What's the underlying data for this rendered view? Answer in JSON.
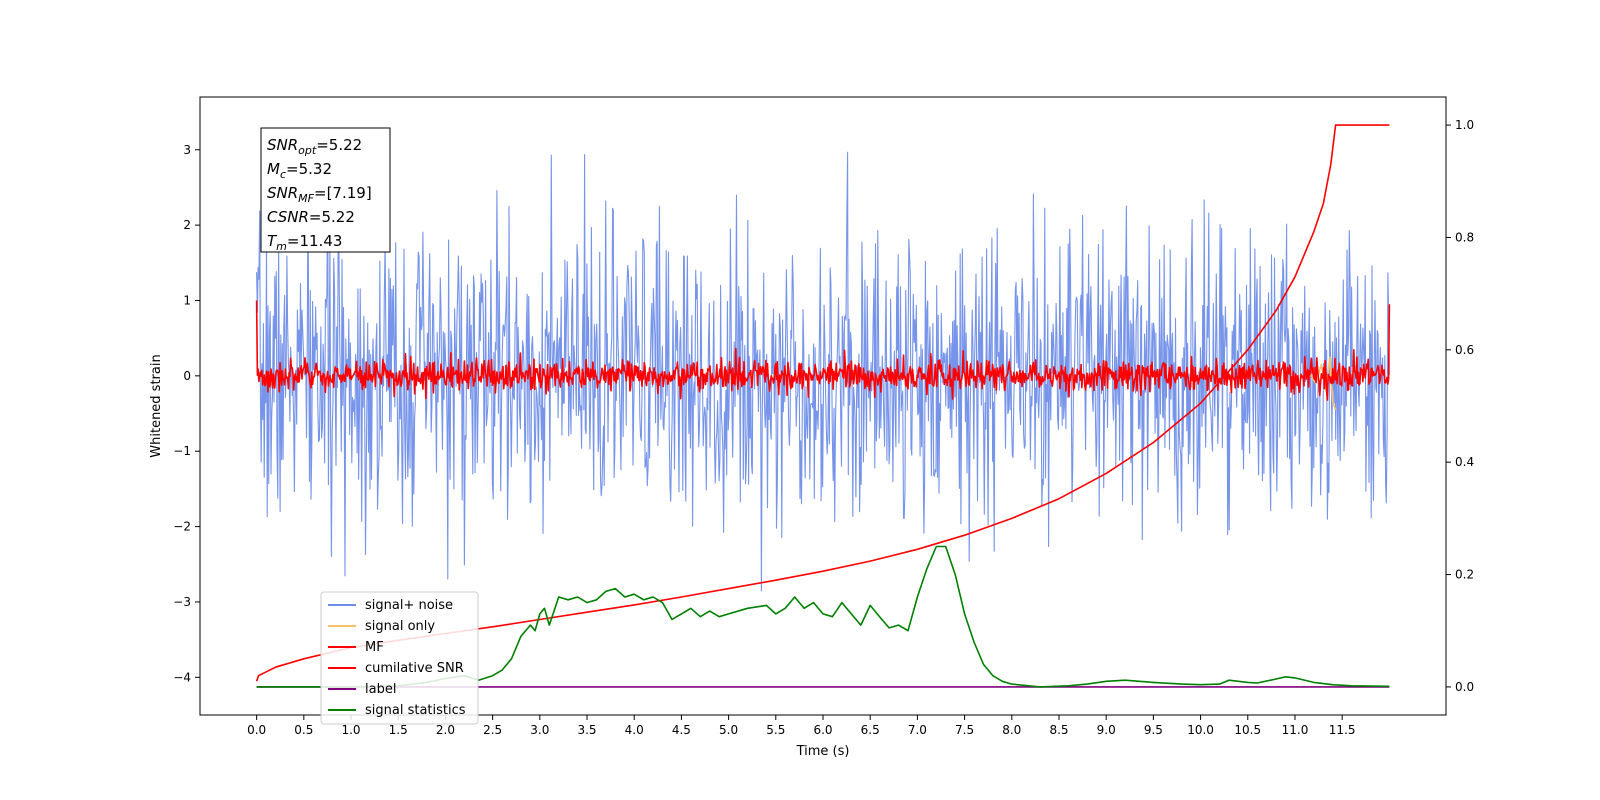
{
  "chart_data": {
    "type": "line",
    "xlabel": "Time (s)",
    "ylabel": "Whitened strain",
    "xlim": [
      -0.6,
      12.6
    ],
    "ylim": [
      -4.5,
      3.7
    ],
    "y2lim": [
      -0.05,
      1.05
    ],
    "x_ticks": [
      0.0,
      0.5,
      1.0,
      1.5,
      2.0,
      2.5,
      3.0,
      3.5,
      4.0,
      4.5,
      5.0,
      5.5,
      6.0,
      6.5,
      7.0,
      7.5,
      8.0,
      8.5,
      9.0,
      9.5,
      10.0,
      10.5,
      11.0,
      11.5
    ],
    "x_tick_labels": [
      "0.0",
      "0.5",
      "1.0",
      "1.5",
      "2.0",
      "2.5",
      "3.0",
      "3.5",
      "4.0",
      "4.5",
      "5.0",
      "5.5",
      "6.0",
      "6.5",
      "7.0",
      "7.5",
      "8.0",
      "8.5",
      "9.0",
      "9.5",
      "10.0",
      "10.5",
      "11.0",
      "11.5"
    ],
    "y_ticks": [
      -4,
      -3,
      -2,
      -1,
      0,
      1,
      2,
      3
    ],
    "y_tick_labels": [
      "−4",
      "−3",
      "−2",
      "−1",
      "0",
      "1",
      "2",
      "3"
    ],
    "y2_ticks": [
      0.0,
      0.2,
      0.4,
      0.6,
      0.8,
      1.0
    ],
    "y2_tick_labels": [
      "0.0",
      "0.2",
      "0.4",
      "0.6",
      "0.8",
      "1.0"
    ],
    "annotation": {
      "lines": [
        {
          "sym": "SNR",
          "sub": "opt",
          "value": "=5.22"
        },
        {
          "sym": "M",
          "sub": "c",
          "value": "=5.32"
        },
        {
          "sym": "SNR",
          "sub": "MF",
          "value": "=[7.19]"
        },
        {
          "sym": "CSNR",
          "sub": "",
          "value": "=5.22"
        },
        {
          "sym": "T",
          "sub": "m",
          "value": "=11.43"
        }
      ]
    },
    "legend": {
      "placement": "lower-left",
      "entries": [
        {
          "label": "signal+ noise",
          "color": "#6f8ee8"
        },
        {
          "label": "signal only",
          "color": "#f5c26b"
        },
        {
          "label": "MF",
          "color": "#ff0000"
        },
        {
          "label": "cumilative SNR",
          "color": "#ff0000"
        },
        {
          "label": "label",
          "color": "#800080"
        },
        {
          "label": "signal statistics",
          "color": "#008000"
        }
      ]
    },
    "series": [
      {
        "name": "signal+ noise",
        "axis": "left",
        "color": "#6f8ee8",
        "x_range": [
          0,
          12.0
        ],
        "amplitude_std": 0.95,
        "n_points": 1500,
        "seed": 7
      },
      {
        "name": "signal only",
        "axis": "left",
        "color": "#f5c26b",
        "x": [
          11.15,
          11.22,
          11.28,
          11.33,
          11.37,
          11.4,
          11.43
        ],
        "y": [
          0.05,
          -0.1,
          0.15,
          -0.2,
          0.25,
          -0.35,
          -0.45
        ]
      },
      {
        "name": "MF",
        "axis": "left",
        "color": "#ff0000",
        "x_range": [
          0,
          12.0
        ],
        "amplitude_std": 0.1,
        "n_points": 1500,
        "seed": 3,
        "start_value": 1.0,
        "end_value": 0.95
      },
      {
        "name": "cumilative SNR",
        "axis": "right",
        "color": "#ff0000",
        "x": [
          0.0,
          0.02,
          0.2,
          0.5,
          1.0,
          1.5,
          2.0,
          2.5,
          3.0,
          3.5,
          4.0,
          4.5,
          5.0,
          5.5,
          6.0,
          6.5,
          7.0,
          7.5,
          8.0,
          8.5,
          9.0,
          9.5,
          10.0,
          10.5,
          10.8,
          11.0,
          11.2,
          11.3,
          11.38,
          11.43,
          12.0
        ],
        "y": [
          0.01,
          0.02,
          0.035,
          0.05,
          0.07,
          0.083,
          0.095,
          0.107,
          0.12,
          0.133,
          0.146,
          0.16,
          0.175,
          0.19,
          0.206,
          0.224,
          0.245,
          0.27,
          0.3,
          0.335,
          0.38,
          0.435,
          0.505,
          0.6,
          0.67,
          0.73,
          0.81,
          0.86,
          0.93,
          1.0,
          1.0
        ]
      },
      {
        "name": "label",
        "axis": "right",
        "color": "#800080",
        "x": [
          0.0,
          12.0
        ],
        "y": [
          0.0,
          0.0
        ]
      },
      {
        "name": "signal statistics",
        "axis": "right",
        "color": "#008000",
        "x": [
          0.0,
          0.5,
          1.0,
          1.5,
          1.8,
          2.0,
          2.2,
          2.35,
          2.5,
          2.6,
          2.7,
          2.8,
          2.9,
          2.95,
          3.0,
          3.05,
          3.1,
          3.2,
          3.3,
          3.4,
          3.5,
          3.6,
          3.7,
          3.8,
          3.9,
          4.0,
          4.1,
          4.2,
          4.3,
          4.4,
          4.5,
          4.6,
          4.7,
          4.8,
          4.9,
          5.0,
          5.2,
          5.4,
          5.5,
          5.6,
          5.7,
          5.8,
          5.9,
          6.0,
          6.1,
          6.2,
          6.3,
          6.4,
          6.5,
          6.6,
          6.7,
          6.8,
          6.9,
          7.0,
          7.1,
          7.2,
          7.3,
          7.4,
          7.5,
          7.6,
          7.7,
          7.8,
          7.9,
          8.0,
          8.3,
          8.6,
          8.8,
          9.0,
          9.2,
          9.5,
          9.8,
          10.0,
          10.2,
          10.3,
          10.5,
          10.6,
          10.8,
          10.9,
          11.0,
          11.2,
          11.4,
          11.6,
          12.0
        ],
        "y": [
          0.0,
          0.0,
          0.0,
          0.002,
          0.008,
          0.015,
          0.02,
          0.012,
          0.02,
          0.03,
          0.05,
          0.09,
          0.11,
          0.1,
          0.13,
          0.14,
          0.11,
          0.16,
          0.155,
          0.16,
          0.15,
          0.155,
          0.17,
          0.175,
          0.16,
          0.165,
          0.155,
          0.16,
          0.15,
          0.12,
          0.13,
          0.14,
          0.125,
          0.135,
          0.125,
          0.13,
          0.14,
          0.145,
          0.13,
          0.14,
          0.16,
          0.14,
          0.15,
          0.13,
          0.125,
          0.15,
          0.13,
          0.11,
          0.145,
          0.125,
          0.105,
          0.11,
          0.1,
          0.16,
          0.21,
          0.25,
          0.25,
          0.2,
          0.13,
          0.08,
          0.04,
          0.02,
          0.01,
          0.005,
          0.0,
          0.002,
          0.005,
          0.01,
          0.012,
          0.008,
          0.005,
          0.004,
          0.005,
          0.012,
          0.008,
          0.007,
          0.014,
          0.018,
          0.016,
          0.008,
          0.004,
          0.002,
          0.001
        ]
      }
    ]
  }
}
